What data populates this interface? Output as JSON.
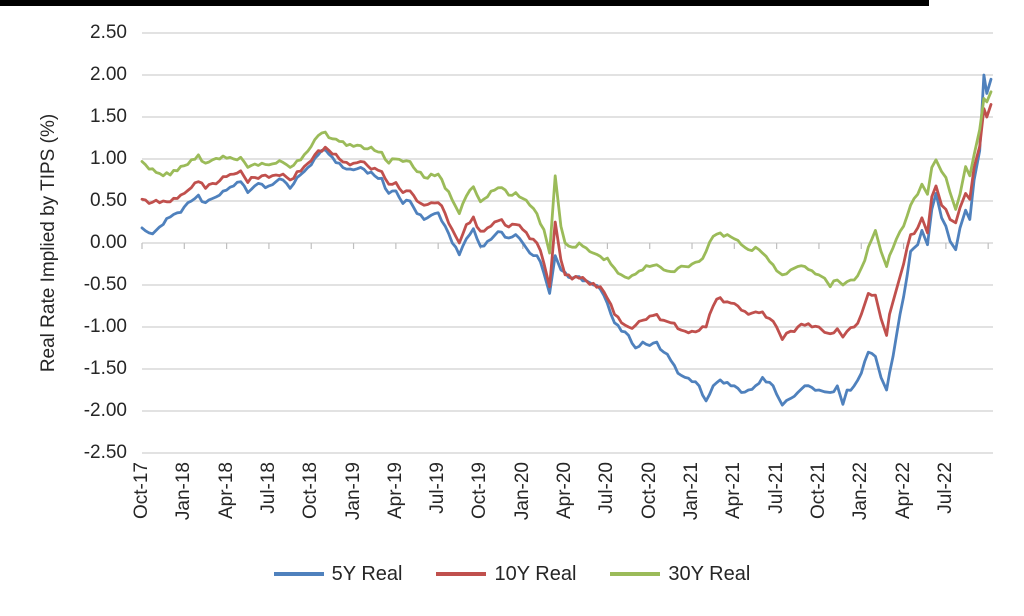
{
  "decorations": {
    "top_border_color": "#000000",
    "background": "#ffffff"
  },
  "chart_data": {
    "type": "line",
    "title": "",
    "xlabel": "",
    "ylabel": "Real Rate Implied by TIPS (%)",
    "ylim": [
      -2.5,
      2.5
    ],
    "ytick_step": 0.5,
    "ytick_labels": [
      "2.50",
      "2.00",
      "1.50",
      "1.00",
      "0.50",
      "0.00",
      "-0.50",
      "-1.00",
      "-1.50",
      "-2.00",
      "-2.50"
    ],
    "xtick_labels": [
      "Oct-17",
      "Jan-18",
      "Apr-18",
      "Jul-18",
      "Oct-18",
      "Jan-19",
      "Apr-19",
      "Jul-19",
      "Oct-19",
      "Jan-20",
      "Apr-20",
      "Jul-20",
      "Oct-20",
      "Jan-21",
      "Apr-21",
      "Jul-21",
      "Oct-21",
      "Jan-22",
      "Apr-22",
      "Jul-22"
    ],
    "x_unit": "months since Oct-2017 (ticks every 3 months; data runs to ~Nov-2022)",
    "grid": true,
    "gridline_color": "#D9D9D9",
    "axis_tick_color": "#BFBFBF",
    "text_color": "#262626",
    "legend_position": "bottom",
    "x": [
      0,
      0.5,
      1,
      1.5,
      2,
      2.5,
      3,
      3.5,
      4,
      4.5,
      5,
      5.5,
      6,
      6.5,
      7,
      7.5,
      8,
      8.5,
      9,
      9.5,
      10,
      10.5,
      11,
      11.5,
      12,
      12.5,
      13,
      13.5,
      14,
      14.5,
      15,
      15.5,
      16,
      16.5,
      17,
      17.5,
      18,
      18.5,
      19,
      19.5,
      20,
      20.5,
      21,
      21.5,
      22,
      22.5,
      23,
      23.5,
      24,
      24.5,
      25,
      25.5,
      26,
      26.5,
      27,
      27.5,
      28,
      28.5,
      28.9,
      29.3,
      29.7,
      30,
      30.5,
      31,
      31.5,
      32,
      32.5,
      33,
      33.5,
      34,
      34.5,
      35,
      35.5,
      36,
      36.5,
      37,
      37.5,
      38,
      38.5,
      39,
      39.5,
      40,
      40.5,
      41,
      41.5,
      42,
      42.5,
      43,
      43.5,
      44,
      44.5,
      45,
      45.4,
      46,
      46.5,
      47,
      47.5,
      48,
      48.8,
      49.3,
      49.7,
      50,
      50.5,
      51,
      51.5,
      52,
      52.4,
      52.8,
      53,
      53.5,
      54,
      54.5,
      55,
      55.3,
      55.7,
      56,
      56.3,
      56.7,
      57,
      57.3,
      57.7,
      58,
      58.4,
      58.7,
      59,
      59.4,
      59.7,
      59.9,
      60.2
    ],
    "series": [
      {
        "name": "5Y Real",
        "color": "#4F81BD",
        "values": [
          0.18,
          0.12,
          0.15,
          0.22,
          0.31,
          0.36,
          0.43,
          0.5,
          0.57,
          0.48,
          0.53,
          0.57,
          0.63,
          0.68,
          0.73,
          0.6,
          0.68,
          0.7,
          0.68,
          0.73,
          0.75,
          0.65,
          0.78,
          0.85,
          0.93,
          1.05,
          1.11,
          1.02,
          0.95,
          0.88,
          0.87,
          0.9,
          0.83,
          0.8,
          0.77,
          0.59,
          0.62,
          0.47,
          0.5,
          0.35,
          0.28,
          0.33,
          0.36,
          0.2,
          0.0,
          -0.14,
          0.05,
          0.17,
          -0.04,
          0.02,
          0.09,
          0.13,
          0.06,
          0.1,
          0.0,
          -0.12,
          -0.15,
          -0.36,
          -0.6,
          -0.15,
          -0.32,
          -0.35,
          -0.42,
          -0.4,
          -0.45,
          -0.5,
          -0.55,
          -0.72,
          -0.95,
          -1.05,
          -1.1,
          -1.25,
          -1.18,
          -1.22,
          -1.18,
          -1.3,
          -1.4,
          -1.55,
          -1.6,
          -1.65,
          -1.7,
          -1.88,
          -1.7,
          -1.63,
          -1.66,
          -1.7,
          -1.78,
          -1.75,
          -1.7,
          -1.6,
          -1.66,
          -1.8,
          -1.93,
          -1.85,
          -1.78,
          -1.7,
          -1.72,
          -1.75,
          -1.78,
          -1.7,
          -1.92,
          -1.75,
          -1.7,
          -1.55,
          -1.3,
          -1.35,
          -1.6,
          -1.75,
          -1.55,
          -1.1,
          -0.64,
          -0.1,
          -0.02,
          0.15,
          -0.02,
          0.4,
          0.59,
          0.3,
          0.2,
          0.02,
          -0.08,
          0.18,
          0.39,
          0.28,
          0.75,
          1.1,
          2.0,
          1.78,
          1.95
        ]
      },
      {
        "name": "10Y Real",
        "color": "#C0504D",
        "values": [
          0.52,
          0.47,
          0.51,
          0.5,
          0.49,
          0.53,
          0.59,
          0.66,
          0.73,
          0.65,
          0.71,
          0.74,
          0.79,
          0.82,
          0.86,
          0.72,
          0.78,
          0.8,
          0.78,
          0.81,
          0.82,
          0.75,
          0.85,
          0.91,
          0.98,
          1.1,
          1.14,
          1.06,
          1.0,
          0.96,
          0.95,
          0.97,
          0.92,
          0.89,
          0.85,
          0.7,
          0.72,
          0.6,
          0.62,
          0.5,
          0.45,
          0.48,
          0.48,
          0.35,
          0.16,
          0.0,
          0.22,
          0.31,
          0.14,
          0.18,
          0.25,
          0.28,
          0.19,
          0.22,
          0.16,
          0.05,
          0.0,
          -0.24,
          -0.52,
          0.25,
          -0.2,
          -0.38,
          -0.43,
          -0.42,
          -0.45,
          -0.48,
          -0.52,
          -0.66,
          -0.85,
          -0.95,
          -1.0,
          -0.98,
          -0.92,
          -0.87,
          -0.85,
          -0.92,
          -0.95,
          -1.02,
          -1.05,
          -1.05,
          -1.04,
          -1.0,
          -0.75,
          -0.65,
          -0.7,
          -0.72,
          -0.8,
          -0.85,
          -0.82,
          -0.82,
          -0.9,
          -1.0,
          -1.15,
          -1.05,
          -1.0,
          -0.98,
          -1.0,
          -1.0,
          -1.08,
          -1.02,
          -1.12,
          -1.05,
          -1.0,
          -0.85,
          -0.6,
          -0.62,
          -0.9,
          -1.1,
          -0.85,
          -0.55,
          -0.25,
          0.1,
          0.18,
          0.3,
          0.12,
          0.55,
          0.68,
          0.45,
          0.4,
          0.28,
          0.24,
          0.42,
          0.59,
          0.52,
          0.9,
          1.15,
          1.6,
          1.5,
          1.65
        ]
      },
      {
        "name": "30Y Real",
        "color": "#9BBB59",
        "values": [
          0.97,
          0.88,
          0.84,
          0.8,
          0.81,
          0.86,
          0.92,
          0.99,
          1.05,
          0.95,
          0.99,
          1.0,
          1.01,
          1.0,
          1.02,
          0.9,
          0.94,
          0.95,
          0.93,
          0.95,
          0.96,
          0.9,
          0.98,
          1.05,
          1.15,
          1.28,
          1.32,
          1.24,
          1.21,
          1.16,
          1.15,
          1.16,
          1.12,
          1.1,
          1.08,
          0.95,
          1.0,
          0.97,
          0.97,
          0.85,
          0.78,
          0.82,
          0.82,
          0.65,
          0.51,
          0.35,
          0.56,
          0.67,
          0.49,
          0.55,
          0.63,
          0.66,
          0.57,
          0.6,
          0.53,
          0.45,
          0.35,
          0.16,
          -0.12,
          0.8,
          0.2,
          0.0,
          -0.05,
          0.0,
          -0.06,
          -0.12,
          -0.16,
          -0.18,
          -0.3,
          -0.38,
          -0.42,
          -0.37,
          -0.32,
          -0.28,
          -0.26,
          -0.32,
          -0.34,
          -0.3,
          -0.28,
          -0.25,
          -0.22,
          -0.1,
          0.08,
          0.12,
          0.1,
          0.05,
          -0.02,
          -0.08,
          -0.05,
          -0.12,
          -0.22,
          -0.33,
          -0.38,
          -0.32,
          -0.28,
          -0.28,
          -0.33,
          -0.38,
          -0.52,
          -0.44,
          -0.5,
          -0.46,
          -0.44,
          -0.3,
          -0.05,
          0.15,
          -0.1,
          -0.28,
          -0.15,
          0.05,
          0.2,
          0.45,
          0.58,
          0.7,
          0.58,
          0.9,
          0.99,
          0.85,
          0.78,
          0.6,
          0.4,
          0.58,
          0.91,
          0.8,
          1.05,
          1.35,
          1.72,
          1.68,
          1.8
        ]
      }
    ]
  }
}
